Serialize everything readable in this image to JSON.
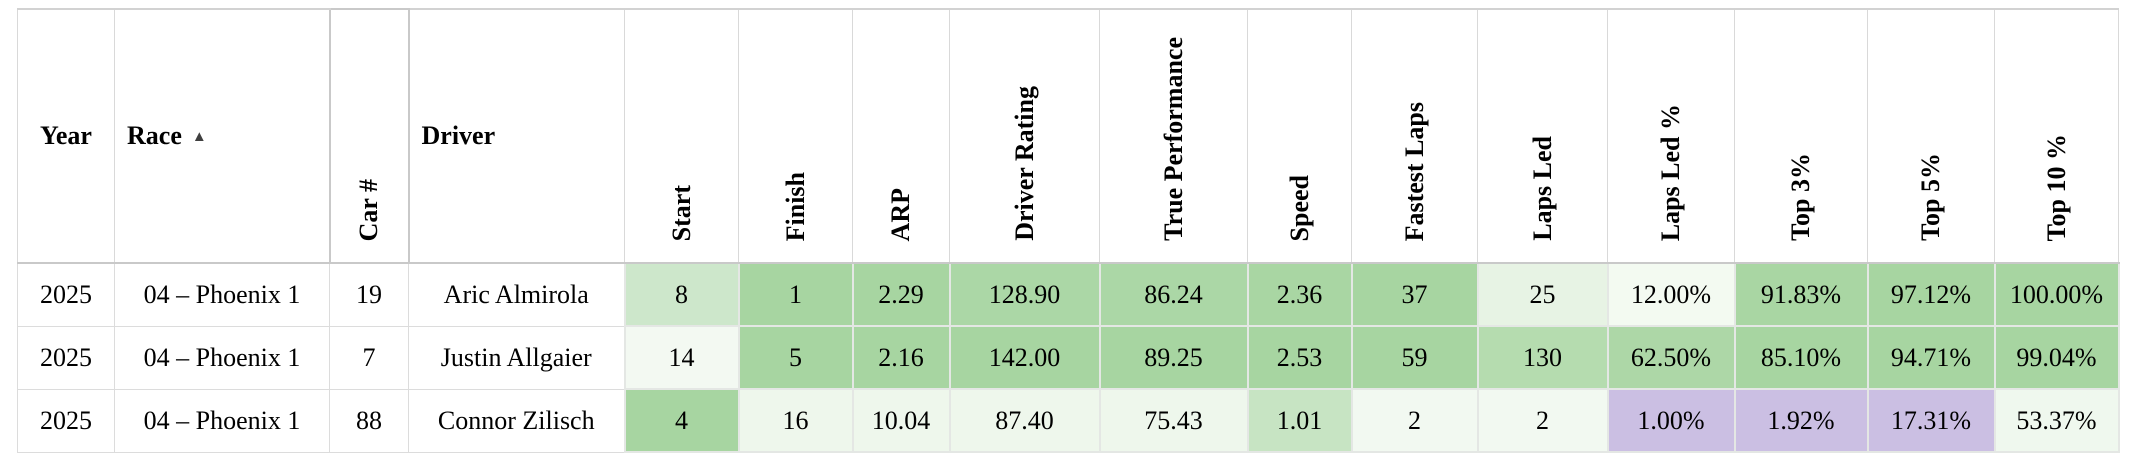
{
  "table": {
    "columns": [
      {
        "key": "year",
        "label": "Year"
      },
      {
        "key": "race",
        "label": "Race",
        "sort_indicator": "▲"
      },
      {
        "key": "car-number",
        "label": "Car #"
      },
      {
        "key": "driver",
        "label": "Driver"
      },
      {
        "key": "start",
        "label": "Start"
      },
      {
        "key": "finish",
        "label": "Finish"
      },
      {
        "key": "arp",
        "label": "ARP"
      },
      {
        "key": "driver-rating",
        "label": "Driver Rating"
      },
      {
        "key": "true-performance",
        "label": "True Performance"
      },
      {
        "key": "speed",
        "label": "Speed"
      },
      {
        "key": "fastest-laps",
        "label": "Fastest Laps"
      },
      {
        "key": "laps-led",
        "label": "Laps Led"
      },
      {
        "key": "laps-led-pct",
        "label": "Laps Led %"
      },
      {
        "key": "top-3-pct",
        "label": "Top 3%"
      },
      {
        "key": "top-5-pct",
        "label": "Top 5%"
      },
      {
        "key": "top-10-pct",
        "label": "Top 10 %"
      }
    ],
    "rows": [
      {
        "cells": [
          {
            "v": "2025",
            "bg": ""
          },
          {
            "v": "04 – Phoenix 1",
            "bg": ""
          },
          {
            "v": "19",
            "bg": ""
          },
          {
            "v": "Aric Almirola",
            "bg": ""
          },
          {
            "v": "8",
            "bg": "#cde7cb"
          },
          {
            "v": "1",
            "bg": "#a7d5a1"
          },
          {
            "v": "2.29",
            "bg": "#a7d5a1"
          },
          {
            "v": "128.90",
            "bg": "#abd7a6"
          },
          {
            "v": "86.24",
            "bg": "#abd7a6"
          },
          {
            "v": "2.36",
            "bg": "#a9d6a3"
          },
          {
            "v": "37",
            "bg": "#a7d5a1"
          },
          {
            "v": "25",
            "bg": "#e7f3e4"
          },
          {
            "v": "12.00%",
            "bg": "#f3faf1"
          },
          {
            "v": "91.83%",
            "bg": "#a9d6a3"
          },
          {
            "v": "97.12%",
            "bg": "#a7d5a1"
          },
          {
            "v": "100.00%",
            "bg": "#a7d5a1"
          }
        ]
      },
      {
        "cells": [
          {
            "v": "2025",
            "bg": ""
          },
          {
            "v": "04 – Phoenix 1",
            "bg": ""
          },
          {
            "v": "7",
            "bg": ""
          },
          {
            "v": "Justin Allgaier",
            "bg": ""
          },
          {
            "v": "14",
            "bg": "#f3f9f2"
          },
          {
            "v": "5",
            "bg": "#a7d5a1"
          },
          {
            "v": "2.16",
            "bg": "#a7d5a1"
          },
          {
            "v": "142.00",
            "bg": "#a7d5a1"
          },
          {
            "v": "89.25",
            "bg": "#a7d5a1"
          },
          {
            "v": "2.53",
            "bg": "#a7d5a1"
          },
          {
            "v": "59",
            "bg": "#a7d5a1"
          },
          {
            "v": "130",
            "bg": "#b5dcaf"
          },
          {
            "v": "62.50%",
            "bg": "#add7a7"
          },
          {
            "v": "85.10%",
            "bg": "#a7d5a1"
          },
          {
            "v": "94.71%",
            "bg": "#a7d5a1"
          },
          {
            "v": "99.04%",
            "bg": "#a7d5a1"
          }
        ]
      },
      {
        "cells": [
          {
            "v": "2025",
            "bg": ""
          },
          {
            "v": "04 – Phoenix 1",
            "bg": ""
          },
          {
            "v": "88",
            "bg": ""
          },
          {
            "v": "Connor Zilisch",
            "bg": ""
          },
          {
            "v": "4",
            "bg": "#a7d5a1"
          },
          {
            "v": "16",
            "bg": "#eef7ec"
          },
          {
            "v": "10.04",
            "bg": "#eef7ec"
          },
          {
            "v": "87.40",
            "bg": "#eef7ec"
          },
          {
            "v": "75.43",
            "bg": "#eef7ec"
          },
          {
            "v": "1.01",
            "bg": "#c7e4c3"
          },
          {
            "v": "2",
            "bg": "#f2f9f1"
          },
          {
            "v": "2",
            "bg": "#f2f9f1"
          },
          {
            "v": "1.00%",
            "bg": "#cbbfe3"
          },
          {
            "v": "1.92%",
            "bg": "#cbbfe3"
          },
          {
            "v": "17.31%",
            "bg": "#cbbfe3"
          },
          {
            "v": "53.37%",
            "bg": "#eff8ee"
          }
        ]
      }
    ]
  },
  "colors": {
    "cf_green_strong": "#a7d5a1",
    "cf_green_light": "#cde7cb",
    "cf_green_faint": "#eef7ec",
    "cf_purple": "#cbbfe3",
    "grid_line": "#e4e7e4",
    "header_line": "#c9c9c9"
  }
}
